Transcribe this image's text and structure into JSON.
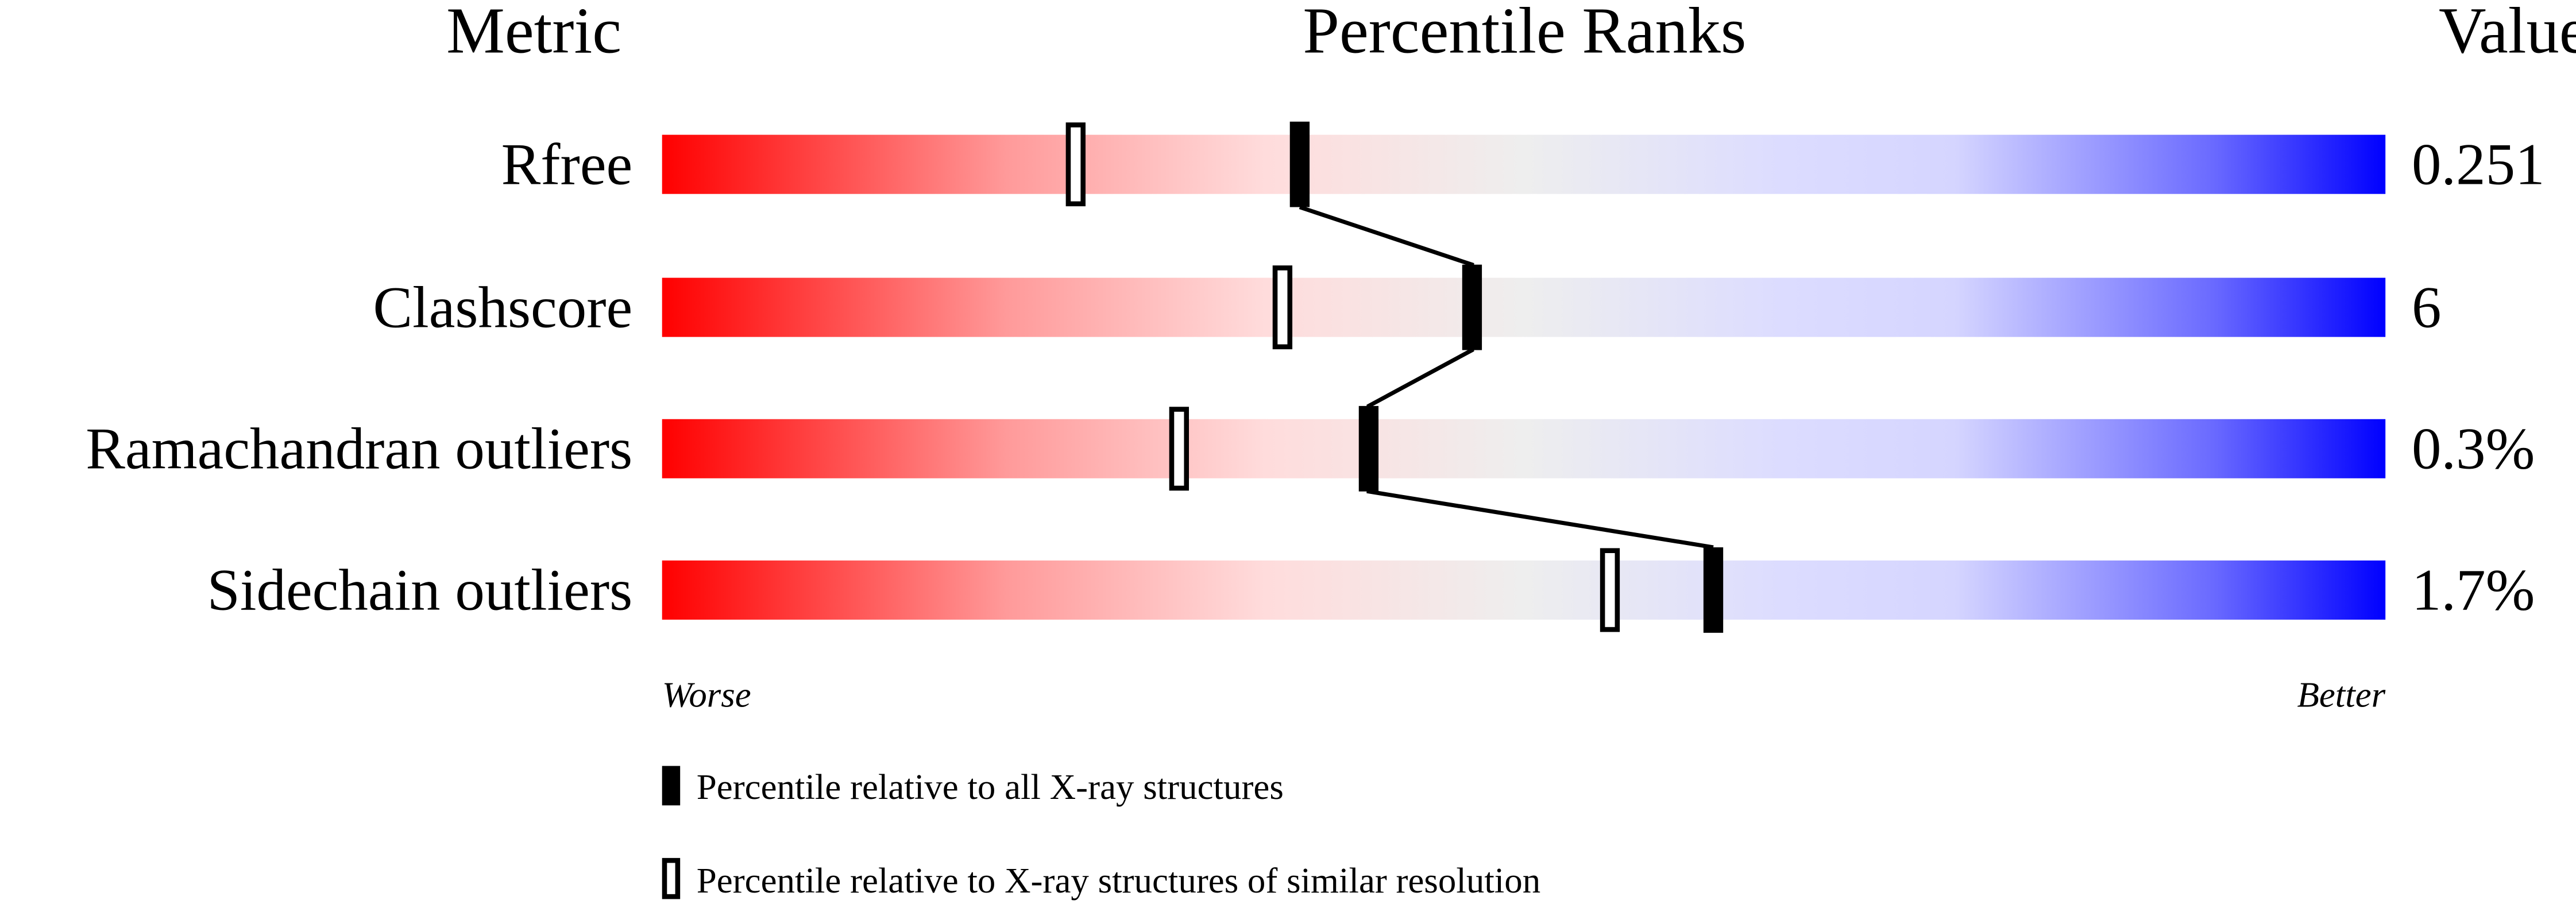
{
  "chart_data": {
    "type": "bar",
    "header": {
      "metric": "Metric",
      "title": "Percentile Ranks",
      "value": "Value"
    },
    "xlim": [
      0,
      100
    ],
    "metrics": [
      {
        "name": "Rfree",
        "value": "0.251",
        "percentile_all": 37,
        "percentile_similar": 24
      },
      {
        "name": "Clashscore",
        "value": "6",
        "percentile_all": 47,
        "percentile_similar": 36
      },
      {
        "name": "Ramachandran outliers",
        "value": "0.3%",
        "percentile_all": 41,
        "percentile_similar": 30
      },
      {
        "name": "Sidechain outliers",
        "value": "1.7%",
        "percentile_all": 61,
        "percentile_similar": 55
      }
    ],
    "axis": {
      "left": "Worse",
      "right": "Better"
    },
    "legend": [
      {
        "marker": "filled",
        "label": "Percentile relative to all X-ray structures"
      },
      {
        "marker": "open",
        "label": "Percentile relative to X-ray structures of similar resolution"
      }
    ],
    "colors": {
      "worse": "#ff0000",
      "middle": "#eeeeee",
      "better": "#0000ff",
      "marker": "#000000"
    }
  }
}
